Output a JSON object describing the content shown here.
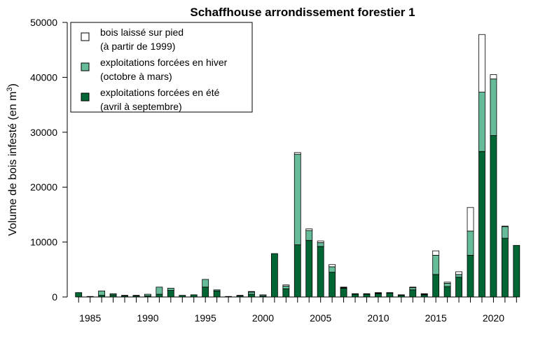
{
  "chart_data": {
    "type": "bar",
    "stacked": true,
    "title": "Schaffhouse arrondissement forestier 1",
    "ylabel": "Volume de bois infesté (en m",
    "ylabel_sup": "3",
    "ylabel_end": ")",
    "xlabel": "",
    "ylim": [
      0,
      50000
    ],
    "yticks": [
      0,
      10000,
      20000,
      30000,
      40000,
      50000
    ],
    "xlim": [
      1983.5,
      2023.5
    ],
    "xticks": [
      1985,
      1990,
      1995,
      2000,
      2005,
      2010,
      2015,
      2020
    ],
    "grid": false,
    "legend_position": "top-left",
    "x": [
      1984,
      1985,
      1986,
      1987,
      1988,
      1989,
      1990,
      1991,
      1992,
      1993,
      1994,
      1995,
      1996,
      1997,
      1998,
      1999,
      2000,
      2001,
      2002,
      2003,
      2004,
      2005,
      2006,
      2007,
      2008,
      2009,
      2010,
      2011,
      2012,
      2013,
      2014,
      2015,
      2016,
      2017,
      2018,
      2019,
      2020,
      2021,
      2022
    ],
    "series": [
      {
        "name": "exploitations forcées en été\n(avril à septembre)",
        "color": "#006633",
        "values": [
          800,
          100,
          300,
          400,
          200,
          200,
          200,
          500,
          1200,
          300,
          400,
          1800,
          1100,
          100,
          200,
          500,
          200,
          7900,
          1500,
          9500,
          10300,
          9200,
          4500,
          1600,
          500,
          500,
          600,
          700,
          300,
          1300,
          400,
          4100,
          1900,
          3600,
          7600,
          26500,
          29400,
          10700,
          9400
        ]
      },
      {
        "name": "exploitations forcées en hiver\n(octobre à mars)",
        "color": "#66bb99",
        "values": [
          0,
          0,
          800,
          200,
          100,
          100,
          300,
          1300,
          400,
          0,
          0,
          1400,
          200,
          0,
          100,
          400,
          200,
          0,
          500,
          16500,
          1800,
          700,
          1000,
          100,
          0,
          0,
          100,
          0,
          0,
          400,
          100,
          3500,
          600,
          500,
          4400,
          10800,
          10300,
          2100,
          0
        ]
      },
      {
        "name": "bois laissé sur pied\n(à partir de 1999)",
        "color": "#ffffff",
        "values": [
          0,
          0,
          0,
          0,
          0,
          0,
          0,
          0,
          0,
          0,
          0,
          0,
          0,
          0,
          0,
          100,
          0,
          0,
          200,
          300,
          300,
          300,
          400,
          100,
          100,
          100,
          100,
          100,
          100,
          100,
          100,
          800,
          200,
          500,
          4300,
          10500,
          800,
          100,
          0
        ]
      }
    ]
  }
}
